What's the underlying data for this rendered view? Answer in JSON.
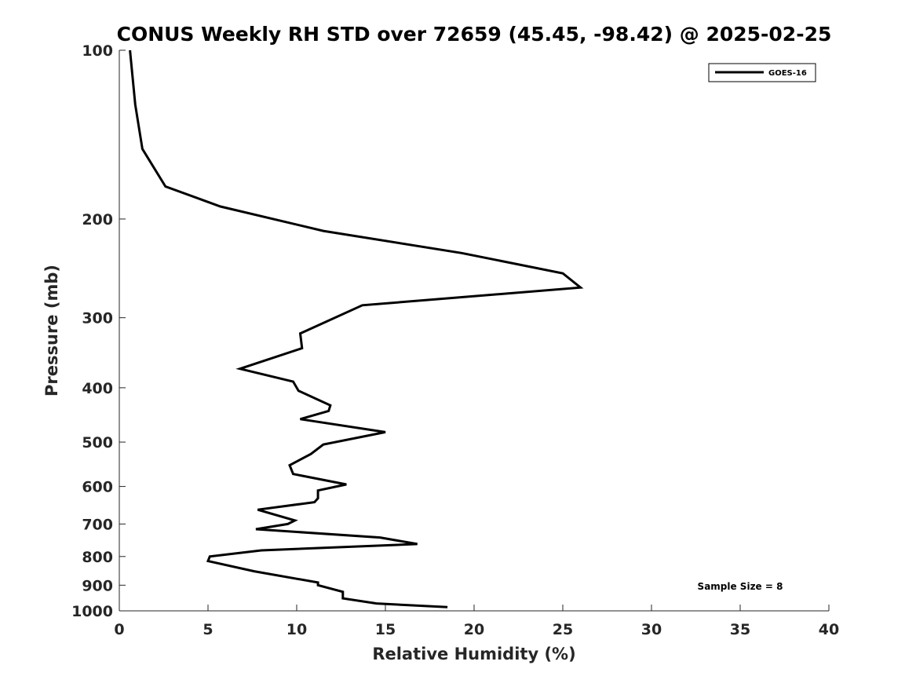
{
  "chart_data": {
    "type": "line",
    "title": "CONUS Weekly RH STD over 72659 (45.45, -98.42) @ 2025-02-25",
    "xlabel": "Relative Humidity (%)",
    "ylabel": "Pressure (mb)",
    "xlim": [
      0,
      40
    ],
    "ylim": [
      100,
      1000
    ],
    "y_scale": "log",
    "y_reversed": true,
    "x_ticks": [
      "0",
      "5",
      "10",
      "15",
      "20",
      "25",
      "30",
      "35",
      "40"
    ],
    "y_ticks": [
      "100",
      "200",
      "300",
      "400",
      "500",
      "600",
      "700",
      "800",
      "900",
      "1000"
    ],
    "grid": false,
    "legend_position": "top-right",
    "annotation": "Sample Size = 8",
    "series": [
      {
        "name": "GOES-16",
        "color": "#000000",
        "x": [
          0.6,
          0.9,
          1.3,
          2.6,
          5.7,
          11.5,
          19.3,
          25.0,
          26.0,
          13.7,
          10.2,
          10.3,
          6.8,
          9.8,
          10.1,
          11.9,
          11.8,
          10.2,
          15.0,
          11.5,
          10.8,
          9.6,
          9.8,
          12.8,
          11.2,
          11.2,
          11.0,
          7.8,
          9.9,
          9.5,
          7.7,
          14.7,
          16.8,
          8.0,
          5.1,
          5.0,
          7.6,
          11.2,
          11.2,
          12.6,
          12.6,
          14.5,
          18.5
        ],
        "y": [
          100,
          125,
          150,
          175,
          190,
          210,
          230,
          250,
          265,
          285,
          320,
          340,
          370,
          390,
          405,
          430,
          440,
          455,
          480,
          505,
          525,
          550,
          570,
          595,
          610,
          630,
          640,
          660,
          690,
          700,
          715,
          740,
          760,
          780,
          800,
          815,
          850,
          890,
          900,
          925,
          950,
          970,
          985
        ]
      }
    ]
  }
}
